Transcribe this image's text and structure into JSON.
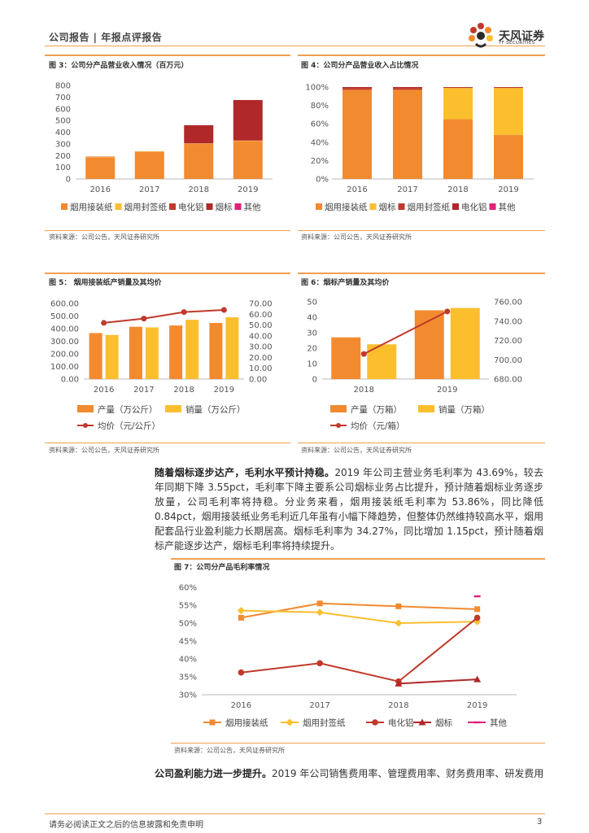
{
  "header": {
    "left": "公司报告 | 年报点评报告",
    "logo_name": "天风证券",
    "logo_sub": "TF SECURITIES"
  },
  "colors": {
    "orange": "#f28a30",
    "yellow": "#fbbf2e",
    "red": "#c0392b",
    "darkred": "#b0282a",
    "pink": "#e0217a",
    "accent": "#f0a050"
  },
  "fig3": {
    "title": "图 3：公司分产品营业收入情况（百万元）",
    "source": "资料来源：公司公告，天风证券研究所",
    "legend": [
      "烟用接装纸",
      "烟用封签纸",
      "电化铝",
      "烟标",
      "其他"
    ]
  },
  "fig4": {
    "title": "图 4：公司分产品营业收入占比情况",
    "source": "资料来源：公司公告，天风证券研究所",
    "legend": [
      "烟用接装纸",
      "烟标",
      "烟用封签纸",
      "电化铝",
      "其他"
    ]
  },
  "fig5": {
    "title": "图 5：  烟用接装纸产销量及其均价",
    "source": "资料来源：公司公告，天风证券研究所",
    "legend": [
      "产量（万公斤）",
      "销量（万公斤）",
      "均价（元/公斤）"
    ]
  },
  "fig6": {
    "title": "图 6：烟标产销量及其均价",
    "source": "资料来源：公司公告，天风证券研究所",
    "legend": [
      "产量（万箱）",
      "销量（万箱）",
      "均价（元/箱）"
    ]
  },
  "fig7": {
    "title": "图 7：公司分产品毛利率情况",
    "source": "资料来源：公司公告，天风证券研究所",
    "legend": [
      "烟用接装纸",
      "烟用封签纸",
      "电化铝",
      "烟标",
      "其他"
    ]
  },
  "para1": {
    "bold": "随着烟标逐步达产，毛利水平预计持稳。",
    "text": "2019 年公司主营业务毛利率为 43.69%，较去年同期下降 3.55pct，毛利率下降主要系公司烟标业务占比提升，预计随着烟标业务逐步放量，公司毛利率将持稳。分业务来看，烟用接装纸毛利率为 53.86%，同比降低 0.84pct，烟用接装纸业务毛利近几年虽有小幅下降趋势，但整体仍然维持较高水平，烟用配套品行业盈利能力长期居高。烟标毛利率为 34.27%，同比增加 1.15pct，预计随着烟标产能逐步达产，烟标毛利率将持续提升。"
  },
  "para2": {
    "bold": "公司盈利能力进一步提升。",
    "text": "2019 年公司销售费用率、管理费用率、财务费用率、研发费用"
  },
  "footer": {
    "disclaimer": "请务必阅读正文之后的信息披露和免责申明",
    "page": "3"
  },
  "chart_data": [
    {
      "id": "fig3",
      "type": "bar",
      "stacked": true,
      "title": "图 3：公司分产品营业收入情况（百万元）",
      "categories": [
        "2016",
        "2017",
        "2018",
        "2019"
      ],
      "ylim": [
        0,
        800
      ],
      "yticks": [
        0,
        100,
        200,
        300,
        400,
        500,
        600,
        700,
        800
      ],
      "series": [
        {
          "name": "烟用接装纸",
          "values": [
            185,
            230,
            300,
            325
          ]
        },
        {
          "name": "烟用封签纸",
          "values": [
            5,
            5,
            3,
            3
          ]
        },
        {
          "name": "电化铝",
          "values": [
            2,
            2,
            2,
            2
          ]
        },
        {
          "name": "烟标",
          "values": [
            0,
            0,
            155,
            345
          ]
        },
        {
          "name": "其他",
          "values": [
            0,
            0,
            0,
            0
          ]
        }
      ]
    },
    {
      "id": "fig4",
      "type": "bar",
      "stacked": true,
      "title": "图 4：公司分产品营业收入占比情况",
      "categories": [
        "2016",
        "2017",
        "2018",
        "2019"
      ],
      "ylim": [
        0,
        100
      ],
      "yticks": [
        "0%",
        "20%",
        "40%",
        "60%",
        "80%",
        "100%"
      ],
      "series": [
        {
          "name": "烟用接装纸",
          "values": [
            97,
            97,
            65,
            48
          ]
        },
        {
          "name": "烟标",
          "values": [
            0,
            0,
            34,
            51
          ]
        },
        {
          "name": "烟用封签纸",
          "values": [
            2,
            2,
            0.5,
            0.5
          ]
        },
        {
          "name": "电化铝",
          "values": [
            1,
            1,
            0.5,
            0.5
          ]
        },
        {
          "name": "其他",
          "values": [
            0,
            0,
            0,
            0
          ]
        }
      ]
    },
    {
      "id": "fig5",
      "type": "bar",
      "title": "图 5：  烟用接装纸产销量及其均价",
      "categories": [
        "2016",
        "2017",
        "2018",
        "2019"
      ],
      "ylim": [
        0,
        600
      ],
      "yticks": [
        "0.00",
        "100.00",
        "200.00",
        "300.00",
        "400.00",
        "500.00",
        "600.00"
      ],
      "y2lim": [
        0,
        70
      ],
      "y2ticks": [
        "0.00",
        "10.00",
        "20.00",
        "30.00",
        "40.00",
        "50.00",
        "60.00",
        "70.00"
      ],
      "series": [
        {
          "name": "产量（万公斤）",
          "values": [
            365,
            415,
            425,
            445
          ]
        },
        {
          "name": "销量（万公斤）",
          "values": [
            350,
            410,
            470,
            490
          ]
        },
        {
          "name": "均价（元/公斤）",
          "axis": "right",
          "values": [
            52,
            56,
            62,
            64
          ]
        }
      ]
    },
    {
      "id": "fig6",
      "type": "bar",
      "title": "图 6：烟标产销量及其均价",
      "categories": [
        "2018",
        "2019"
      ],
      "ylim": [
        0,
        50
      ],
      "yticks": [
        "0",
        "10",
        "20",
        "30",
        "40",
        "50"
      ],
      "y2lim": [
        680,
        760
      ],
      "y2ticks": [
        "680.00",
        "700.00",
        "720.00",
        "740.00",
        "760.00"
      ],
      "series": [
        {
          "name": "产量（万箱）",
          "values": [
            27,
            44.5
          ]
        },
        {
          "name": "销量（万箱）",
          "values": [
            22.5,
            46
          ]
        },
        {
          "name": "均价（元/箱）",
          "axis": "right",
          "values": [
            706,
            750
          ]
        }
      ]
    },
    {
      "id": "fig7",
      "type": "line",
      "title": "图 7：公司分产品毛利率情况",
      "categories": [
        "2016",
        "2017",
        "2018",
        "2019"
      ],
      "ylim": [
        30,
        60
      ],
      "yticks": [
        "30%",
        "35%",
        "40%",
        "45%",
        "50%",
        "55%",
        "60%"
      ],
      "series": [
        {
          "name": "烟用接装纸",
          "values": [
            51.5,
            55.5,
            54.7,
            53.9
          ]
        },
        {
          "name": "烟用封签纸",
          "values": [
            53.5,
            53.0,
            50.0,
            50.4
          ]
        },
        {
          "name": "电化铝",
          "values": [
            36.2,
            38.8,
            33.7,
            51.5
          ]
        },
        {
          "name": "烟标",
          "values": [
            null,
            null,
            33.1,
            34.3
          ]
        },
        {
          "name": "其他",
          "values": [
            null,
            null,
            null,
            57.5
          ]
        }
      ]
    }
  ]
}
